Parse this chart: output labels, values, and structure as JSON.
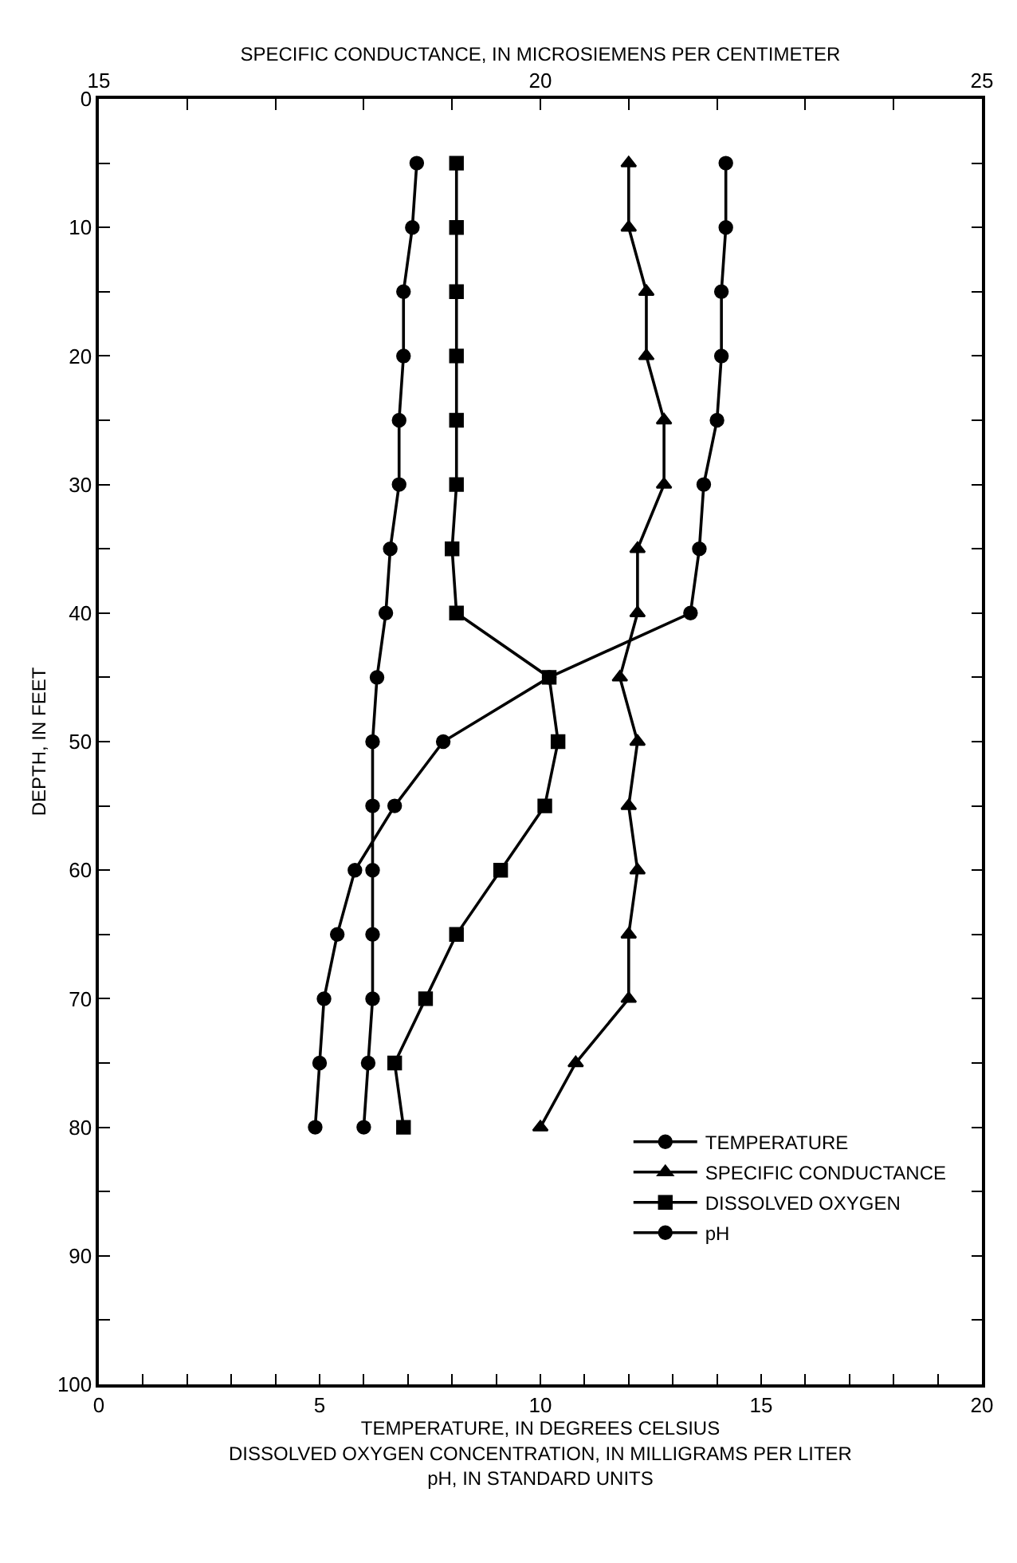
{
  "chart_data": {
    "type": "line",
    "orientation": "horizontal",
    "xlabel": "TEMPERATURE, IN DEGREES CELSIUS\nDISSOLVED OXYGEN CONCENTRATION, IN MILLIGRAMS PER LITER\npH, IN STANDARD UNITS",
    "x2label": "SPECIFIC CONDUCTANCE, IN MICROSIEMENS PER CENTIMETER",
    "ylabel": "DEPTH, IN FEET",
    "x": [
      5,
      10,
      15,
      20,
      25,
      30,
      35,
      40,
      45,
      50,
      55,
      60,
      65,
      70,
      75,
      80
    ],
    "xlim": [
      0,
      20
    ],
    "xticks": [
      0,
      {
        "value": 1,
        "label": null
      },
      {
        "value": 2,
        "label": null
      },
      {
        "value": 3,
        "label": null
      },
      {
        "value": 4,
        "label": null
      },
      5,
      {
        "value": 6,
        "label": null
      },
      {
        "value": 7,
        "label": null
      },
      {
        "value": 8,
        "label": null
      },
      {
        "value": 9,
        "label": null
      },
      10,
      {
        "value": 11,
        "label": null
      },
      {
        "value": 12,
        "label": null
      },
      {
        "value": 13,
        "label": null
      },
      {
        "value": 14,
        "label": null
      },
      15,
      {
        "value": 16,
        "label": null
      },
      {
        "value": 17,
        "label": null
      },
      {
        "value": 18,
        "label": null
      },
      {
        "value": 19,
        "label": null
      },
      20
    ],
    "x2lim": [
      15,
      25
    ],
    "x2ticks": [
      15,
      {
        "value": 16,
        "label": null
      },
      {
        "value": 17,
        "label": null
      },
      {
        "value": 18,
        "label": null
      },
      {
        "value": 19,
        "label": null
      },
      20,
      {
        "value": 21,
        "label": null
      },
      {
        "value": 22,
        "label": null
      },
      {
        "value": 23,
        "label": null
      },
      {
        "value": 24,
        "label": null
      },
      25
    ],
    "ylim": [
      100,
      0
    ],
    "yticks": [
      0,
      {
        "value": 5,
        "label": null
      },
      10,
      {
        "value": 15,
        "label": null
      },
      20,
      {
        "value": 25,
        "label": null
      },
      30,
      {
        "value": 35,
        "label": null
      },
      40,
      {
        "value": 45,
        "label": null
      },
      50,
      {
        "value": 55,
        "label": null
      },
      60,
      {
        "value": 65,
        "label": null
      },
      70,
      {
        "value": 75,
        "label": null
      },
      80,
      {
        "value": 85,
        "label": null
      },
      90,
      {
        "value": 95,
        "label": null
      },
      100
    ],
    "legend": "bottom right",
    "line_style": "solid",
    "series": [
      {
        "name": "TEMPERATURE",
        "color": "#000000",
        "marker": "circle",
        "values": [
          14.2,
          14.2,
          14.1,
          14.1,
          14.0,
          13.7,
          13.6,
          13.4,
          10.2,
          7.8,
          6.7,
          5.8,
          5.4,
          5.1,
          5.0,
          4.9
        ]
      },
      {
        "name": "SPECIFIC CONDUCTANCE",
        "color": "#000000",
        "marker": "triangle",
        "axis": "x2",
        "values": [
          21.0,
          21.0,
          21.2,
          21.2,
          21.4,
          21.4,
          21.1,
          21.1,
          20.9,
          21.1,
          21.0,
          21.1,
          21.0,
          21.0,
          20.4,
          20.0
        ]
      },
      {
        "name": "DISSOLVED OXYGEN",
        "color": "#000000",
        "marker": "square",
        "values": [
          8.1,
          8.1,
          8.1,
          8.1,
          8.1,
          8.1,
          8.0,
          8.1,
          10.2,
          10.4,
          10.1,
          9.1,
          8.1,
          7.4,
          6.7,
          6.9
        ]
      },
      {
        "name": "pH",
        "color": "#000000",
        "marker": "circle",
        "values": [
          7.2,
          7.1,
          6.9,
          6.9,
          6.8,
          6.8,
          6.6,
          6.5,
          6.3,
          6.2,
          6.2,
          6.2,
          6.2,
          6.2,
          6.1,
          6.0
        ]
      }
    ]
  }
}
